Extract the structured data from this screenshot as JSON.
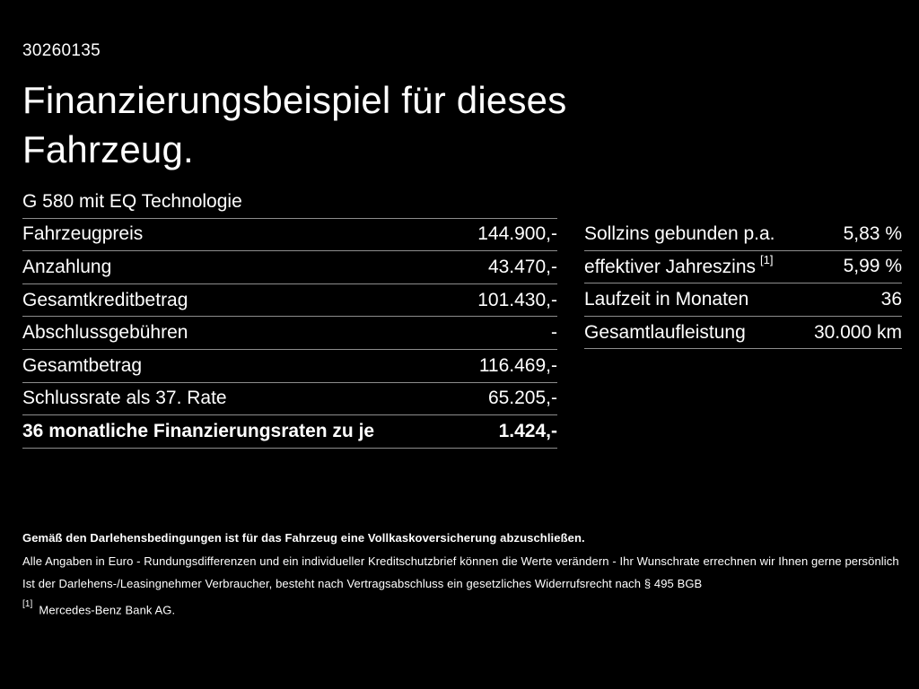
{
  "header": {
    "document_id": "30260135",
    "title_line1": "Finanzierungsbeispiel für dieses",
    "title_line2": "Fahrzeug."
  },
  "finance_table": {
    "model": "G 580 mit EQ Technologie",
    "rows": [
      {
        "label": "Fahrzeugpreis",
        "value": "144.900,-"
      },
      {
        "label": "Anzahlung",
        "value": "43.470,-"
      },
      {
        "label": "Gesamtkreditbetrag",
        "value": "101.430,-"
      },
      {
        "label": "Abschlussgebühren",
        "value": "-"
      },
      {
        "label": "Gesamtbetrag",
        "value": "116.469,-"
      },
      {
        "label": "Schlussrate als 37. Rate",
        "value": "65.205,-"
      },
      {
        "label": "36 monatliche Finanzierungsraten zu je",
        "value": "1.424,-"
      }
    ]
  },
  "conditions_table": {
    "rows": [
      {
        "label": "Sollzins gebunden p.a.",
        "value": "5,83 %"
      },
      {
        "label": "effektiver Jahreszins",
        "marker": "[1]",
        "value": "5,99 %"
      },
      {
        "label": "Laufzeit in Monaten",
        "value": "36"
      },
      {
        "label": "Gesamtlaufleistung",
        "value": "30.000 km"
      }
    ]
  },
  "footer": {
    "insurance_note": "Gemäß den Darlehensbedingungen ist für das Fahrzeug eine Vollkaskoversicherung abzuschließen.",
    "values_note": "Alle Angaben in Euro - Rundungsdifferenzen und ein individueller Kreditschutzbrief können die Werte verändern - Ihr Wunschrate errechnen wir Ihnen gerne persönlich",
    "withdrawal_note": "Ist der Darlehens-/Leasingnehmer Verbraucher, besteht nach Vertragsabschluss ein gesetzliches Widerrufsrecht nach § 495 BGB",
    "footnote_marker": "[1]",
    "footnote_text": "Mercedes-Benz Bank AG."
  },
  "colors": {
    "background": "#000000",
    "text": "#ffffff",
    "separator": "#8d8d8d"
  }
}
